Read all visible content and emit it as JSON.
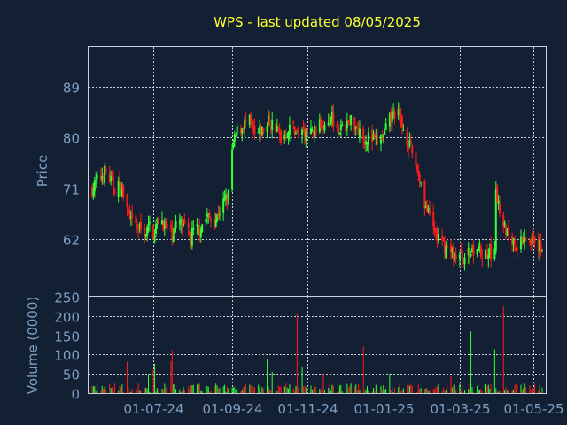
{
  "colors": {
    "background": "#132033",
    "frame": "#c9d2dc",
    "grid": "#c9d2dc",
    "title": "#ffff33",
    "axis_text": "#7f9fc4",
    "up": "#33ff33",
    "down": "#ff1a1a"
  },
  "chart_data": [
    {
      "type": "candlestick",
      "title": "WPS - last updated 08/05/2025",
      "ylabel": "Price",
      "ylim": [
        52,
        96
      ],
      "yticks": [
        62,
        71,
        80,
        89
      ],
      "xticks": [
        "01-07-24",
        "01-09-24",
        "01-11-24",
        "01-01-25",
        "01-03-25",
        "01-05-25"
      ],
      "grid": true,
      "series": [
        {
          "segment": "2024-05",
          "close": [
            67,
            69,
            72,
            74,
            71
          ]
        },
        {
          "segment": "2024-06",
          "close": [
            73,
            70,
            65,
            64,
            63,
            65
          ]
        },
        {
          "segment": "2024-07",
          "close": [
            63,
            66,
            64,
            63,
            65,
            64,
            62
          ]
        },
        {
          "segment": "2024-08",
          "close": [
            63,
            64,
            66,
            65,
            68,
            70
          ]
        },
        {
          "segment": "2024-09",
          "close": [
            77,
            81,
            82,
            83,
            80,
            81,
            82
          ]
        },
        {
          "segment": "2024-10",
          "close": [
            83,
            82,
            80,
            81,
            82,
            80,
            81
          ]
        },
        {
          "segment": "2024-11",
          "close": [
            80,
            81,
            82,
            83,
            84,
            82,
            81
          ]
        },
        {
          "segment": "2024-12",
          "close": [
            82,
            83,
            82,
            80,
            80,
            79,
            80
          ]
        },
        {
          "segment": "2025-01",
          "close": [
            80,
            83,
            85,
            82,
            79,
            76,
            72
          ]
        },
        {
          "segment": "2025-02",
          "close": [
            70,
            66,
            63,
            61,
            60,
            59
          ]
        },
        {
          "segment": "2025-03",
          "close": [
            59,
            59,
            60,
            59,
            60
          ]
        },
        {
          "segment": "2025-04",
          "close": [
            70,
            65,
            62,
            61,
            63,
            62
          ]
        },
        {
          "segment": "2025-05",
          "close": [
            61,
            60,
            60
          ]
        }
      ]
    },
    {
      "type": "bar",
      "ylabel": "Volume (0000)",
      "ylim": [
        0,
        250
      ],
      "yticks": [
        0,
        50,
        100,
        150,
        200,
        250
      ],
      "xticks": [
        "01-07-24",
        "01-09-24",
        "01-11-24",
        "01-01-25",
        "01-03-25",
        "01-05-25"
      ],
      "grid": true,
      "spikes": [
        {
          "date": "2024-10-24",
          "value": 205
        },
        {
          "date": "2025-03-12",
          "value": 160
        },
        {
          "date": "2025-04-07",
          "value": 225
        }
      ],
      "typical_range": [
        2,
        25
      ]
    }
  ]
}
